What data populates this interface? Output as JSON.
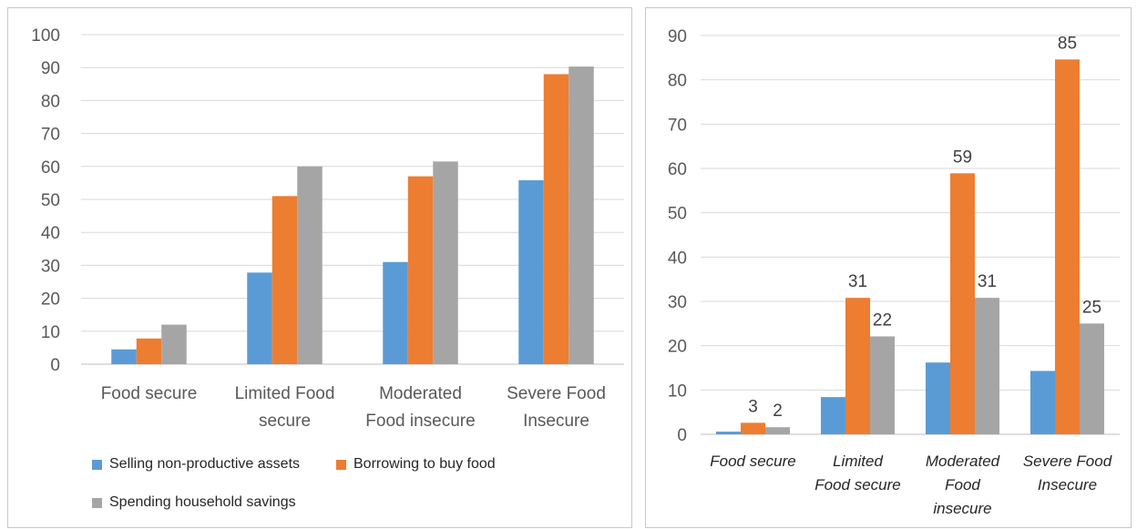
{
  "chart_data": [
    {
      "type": "bar",
      "categories": [
        "Food secure",
        "Limited Food secure",
        "Moderated Food insecure",
        "Severe Food Insecure"
      ],
      "series": [
        {
          "name": "Selling non-productive assets",
          "values": [
            4.5,
            27.8,
            31,
            55.8
          ]
        },
        {
          "name": "Borrowing to buy food",
          "values": [
            7.8,
            51,
            57,
            88
          ]
        },
        {
          "name": "Spending household savings",
          "values": [
            12,
            60,
            61.5,
            90.3
          ]
        }
      ],
      "ylim": [
        0,
        100
      ],
      "yticks": [
        "0",
        "10",
        "20",
        "30",
        "40",
        "50",
        "60",
        "70",
        "80",
        "90",
        "100"
      ],
      "grid": true,
      "legend": "bottom"
    },
    {
      "type": "bar",
      "categories": [
        "Food secure",
        "Limited Food secure",
        "Moderated Food insecure",
        "Severe Food Insecure"
      ],
      "series": [
        {
          "values": [
            0.6,
            8.4,
            16.2,
            14.3
          ],
          "labels": [
            "",
            "",
            "",
            ""
          ]
        },
        {
          "values": [
            2.6,
            30.8,
            58.9,
            84.6
          ],
          "labels": [
            "3",
            "31",
            "59",
            "85"
          ]
        },
        {
          "values": [
            1.6,
            22.1,
            30.8,
            25.0
          ],
          "labels": [
            "2",
            "22",
            "31",
            "25"
          ]
        }
      ],
      "ylim": [
        0,
        90
      ],
      "yticks": [
        "0",
        "10",
        "20",
        "30",
        "40",
        "50",
        "60",
        "70",
        "80",
        "90"
      ],
      "grid": true,
      "legend": "none"
    }
  ],
  "colors": {
    "blue": "#5b9bd5",
    "orange": "#ed7d31",
    "gray": "#a5a5a5",
    "grid": "#d9d9d9"
  },
  "legend_items": [
    {
      "label": "Selling non-productive assets",
      "color": "#5b9bd5"
    },
    {
      "label": "Borrowing to buy food",
      "color": "#ed7d31"
    },
    {
      "label": "Spending household savings",
      "color": "#a5a5a5"
    }
  ]
}
